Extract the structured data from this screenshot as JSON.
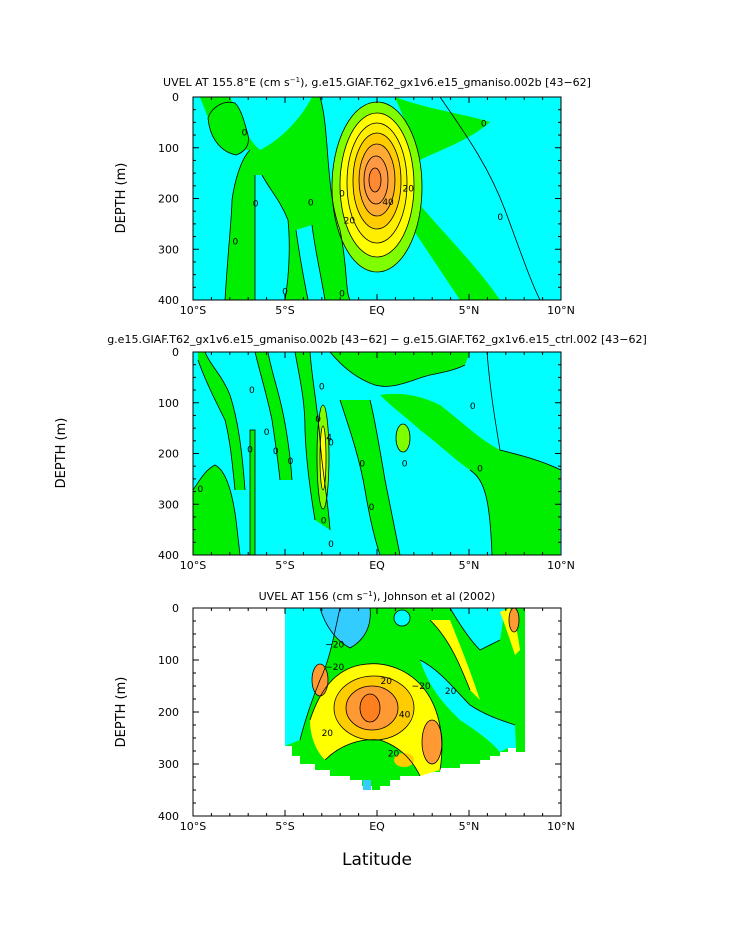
{
  "chart_data": [
    {
      "type": "contour",
      "title_main": "UVEL AT 155.8°E (cm s",
      "title_sup": "−1",
      "title_rest": "), g.e15.GIAF.T62_gx1v6.e15_gmaniso.002b [43−62]",
      "ylabel": "DEPTH (m)",
      "xlabel": "",
      "xticks": [
        "10°S",
        "5°S",
        "EQ",
        "5°N",
        "10°N"
      ],
      "yticks": [
        "0",
        "100",
        "200",
        "300",
        "400"
      ],
      "xlim": [
        -10,
        10
      ],
      "ylim": [
        0,
        400
      ],
      "show_xticklabels": true,
      "contour_labels": [
        {
          "text": "0",
          "lat": -7.2,
          "depth": 70
        },
        {
          "text": "0",
          "lat": -6.6,
          "depth": 210
        },
        {
          "text": "0",
          "lat": -7.7,
          "depth": 285
        },
        {
          "text": "0",
          "lat": -5.0,
          "depth": 383
        },
        {
          "text": "0",
          "lat": -3.6,
          "depth": 208
        },
        {
          "text": "0",
          "lat": -1.9,
          "depth": 190
        },
        {
          "text": "0",
          "lat": -1.9,
          "depth": 387
        },
        {
          "text": "0",
          "lat": 5.8,
          "depth": 52
        },
        {
          "text": "0",
          "lat": 6.7,
          "depth": 236
        },
        {
          "text": "20",
          "lat": -1.5,
          "depth": 243
        },
        {
          "text": "20",
          "lat": 1.7,
          "depth": 180
        },
        {
          "text": "40",
          "lat": 0.6,
          "depth": 207
        }
      ]
    },
    {
      "type": "contour",
      "title_main": "g.e15.GIAF.T62_gx1v6.e15_gmaniso.002b [43−62] − g.e15.GIAF.T62_gx1v6.e15_ctrl.002 [43−62]",
      "title_sup": "",
      "title_rest": "",
      "ylabel": "DEPTH (m)",
      "xlabel": "",
      "xticks": [
        "10°S",
        "5°S",
        "EQ",
        "5°N",
        "10°N"
      ],
      "yticks": [
        "0",
        "100",
        "200",
        "300",
        "400"
      ],
      "xlim": [
        -10,
        10
      ],
      "ylim": [
        0,
        400
      ],
      "show_xticklabels": true,
      "contour_labels": [
        {
          "text": "0",
          "lat": -9.6,
          "depth": 270
        },
        {
          "text": "0",
          "lat": -6.8,
          "depth": 75
        },
        {
          "text": "0",
          "lat": -6.0,
          "depth": 158
        },
        {
          "text": "0",
          "lat": -6.9,
          "depth": 192
        },
        {
          "text": "0",
          "lat": -5.5,
          "depth": 195
        },
        {
          "text": "0",
          "lat": -4.7,
          "depth": 215
        },
        {
          "text": "0",
          "lat": -3.0,
          "depth": 68
        },
        {
          "text": "0",
          "lat": -3.2,
          "depth": 132
        },
        {
          "text": "0",
          "lat": -2.5,
          "depth": 178
        },
        {
          "text": "0",
          "lat": -2.9,
          "depth": 332
        },
        {
          "text": "0",
          "lat": -2.5,
          "depth": 378
        },
        {
          "text": "0",
          "lat": -0.8,
          "depth": 220
        },
        {
          "text": "0",
          "lat": -0.3,
          "depth": 305
        },
        {
          "text": "0",
          "lat": 1.5,
          "depth": 220
        },
        {
          "text": "0",
          "lat": 5.2,
          "depth": 106
        },
        {
          "text": "0",
          "lat": 5.6,
          "depth": 230
        },
        {
          "text": "4",
          "lat": -2.6,
          "depth": 168
        }
      ]
    },
    {
      "type": "contour",
      "title_main": "UVEL AT 156 (cm s",
      "title_sup": "−1",
      "title_rest": "), Johnson et al (2002)",
      "ylabel": "DEPTH (m)",
      "xlabel": "Latitude",
      "xticks": [
        "10°S",
        "5°S",
        "EQ",
        "5°N",
        "10°N"
      ],
      "yticks": [
        "0",
        "100",
        "200",
        "300",
        "400"
      ],
      "xlim": [
        -10,
        10
      ],
      "ylim": [
        0,
        400
      ],
      "show_xticklabels": true,
      "contour_labels": [
        {
          "text": "−20",
          "lat": -2.3,
          "depth": 70
        },
        {
          "text": "−20",
          "lat": -2.3,
          "depth": 113
        },
        {
          "text": "−20",
          "lat": 2.4,
          "depth": 150
        },
        {
          "text": "20",
          "lat": -2.7,
          "depth": 240
        },
        {
          "text": "20",
          "lat": 0.5,
          "depth": 140
        },
        {
          "text": "20",
          "lat": 0.9,
          "depth": 280
        },
        {
          "text": "40",
          "lat": 1.5,
          "depth": 205
        },
        {
          "text": "20",
          "lat": 4.0,
          "depth": 160
        }
      ]
    }
  ],
  "colors": {
    "cyan": "#00ffff",
    "green": "#00ee00",
    "lightgreen": "#80ff00",
    "yellow": "#ffff00",
    "gold": "#ffcc00",
    "orange": "#ff9933",
    "deeporange": "#ff7f1e",
    "blue": "#33ccff"
  }
}
